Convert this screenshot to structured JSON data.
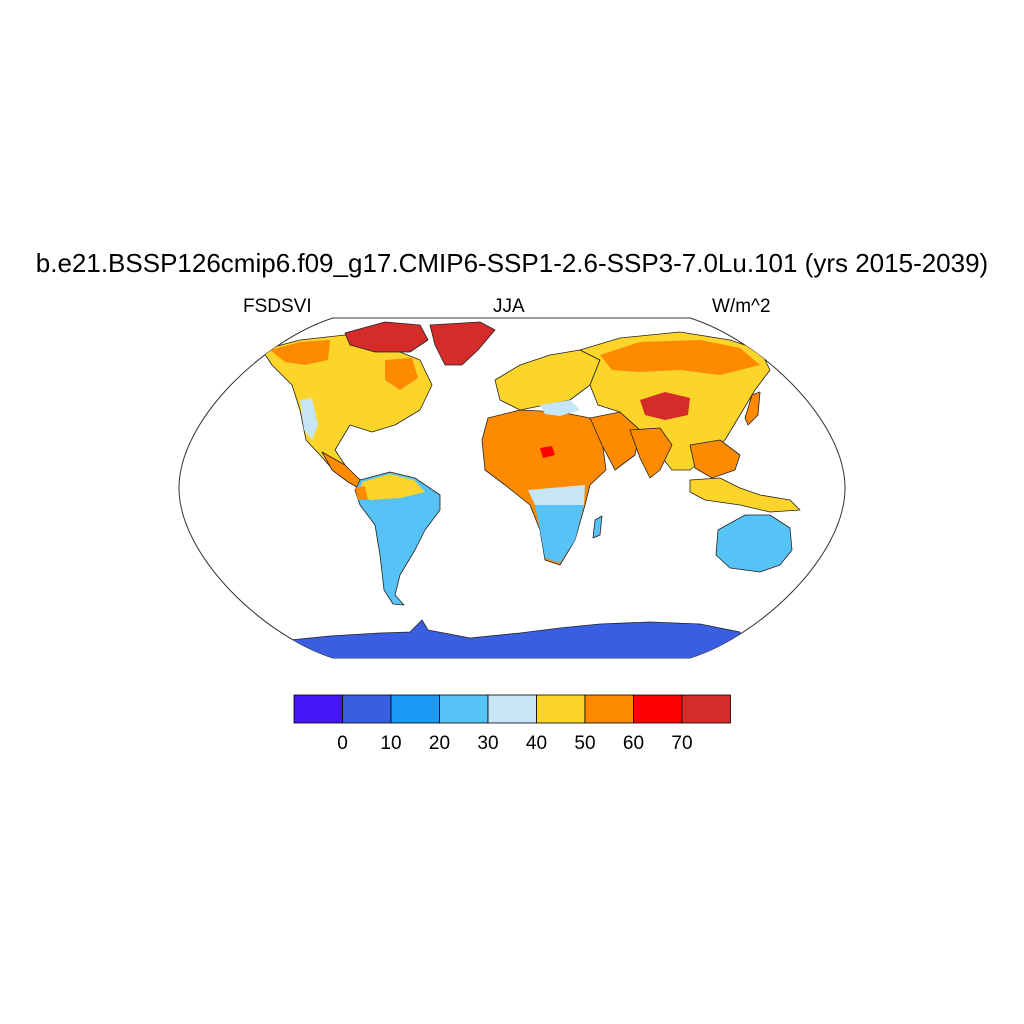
{
  "figure": {
    "title": "b.e21.BSSP126cmip6.f09_g17.CMIP6-SSP1-2.6-SSP3-7.0Lu.101 (yrs 2015-2039)",
    "left_label": "FSDSVI",
    "center_label": "JJA",
    "right_label": "W/m^2"
  },
  "colorbar": {
    "colors": [
      "#4516f5",
      "#3a5ee2",
      "#1b98f8",
      "#56c2f5",
      "#c6e5f6",
      "#fdd52a",
      "#fd8a00",
      "#fb0200",
      "#d52b2b"
    ],
    "tick_labels": [
      "0",
      "10",
      "20",
      "30",
      "40",
      "50",
      "60",
      "70"
    ]
  },
  "chart_data": {
    "type": "heatmap",
    "title": "b.e21.BSSP126cmip6.f09_g17.CMIP6-SSP1-2.6-SSP3-7.0Lu.101 (yrs 2015-2039)",
    "variable": "FSDSVI",
    "season": "JJA",
    "units": "W/m^2",
    "contour_levels": [
      0,
      10,
      20,
      30,
      40,
      50,
      60,
      70
    ],
    "regions": [
      {
        "region": "Antarctica",
        "value": 5
      },
      {
        "region": "Australia",
        "value": 25
      },
      {
        "region": "Southern Africa",
        "value": 25
      },
      {
        "region": "South America (south)",
        "value": 25
      },
      {
        "region": "Amazon",
        "value": 45
      },
      {
        "region": "Sahara",
        "value": 55
      },
      {
        "region": "North America",
        "value": 45
      },
      {
        "region": "Greenland",
        "value": 75
      },
      {
        "region": "Tibetan Plateau",
        "value": 65
      },
      {
        "region": "Eurasia",
        "value": 45
      }
    ]
  }
}
